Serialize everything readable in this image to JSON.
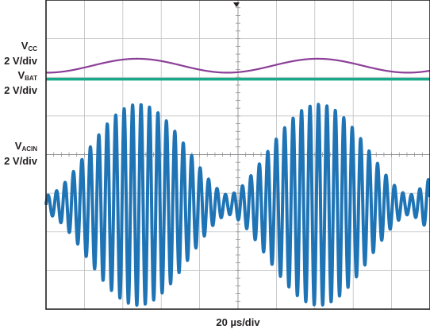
{
  "chart_data": {
    "type": "line",
    "title": "",
    "xlabel": "20 µs/div",
    "grid": true,
    "divisions": {
      "x": 10,
      "y": 8
    },
    "series": [
      {
        "name_main": "V",
        "name_sub": "CC",
        "scale": "2 V/div",
        "color": "#8b3f97",
        "kind": "ripple",
        "level_div": 6.3,
        "ripple_div": 0.18,
        "period_div": 4.7
      },
      {
        "name_main": "V",
        "name_sub": "BAT",
        "scale": "2 V/div",
        "color": "#1aa88a",
        "kind": "flat",
        "level_div": 5.95
      },
      {
        "name_main": "V",
        "name_sub": "ACIN",
        "scale": "2 V/div",
        "color": "#1f74b5",
        "kind": "burst-sine",
        "center_div": 2.7,
        "max_amplitude_div": 2.6,
        "min_amplitude_div": 0.25,
        "envelope_period_div": 4.7,
        "oscillation_period_div": 0.22
      }
    ]
  },
  "labels": {
    "vcc_main": "V",
    "vcc_sub": "CC",
    "vcc_scale": "2 V/div",
    "vbat_main": "V",
    "vbat_sub": "BAT",
    "vbat_scale": "2 V/div",
    "vacin_main": "V",
    "vacin_sub": "ACIN",
    "vacin_scale": "2 V/div"
  }
}
